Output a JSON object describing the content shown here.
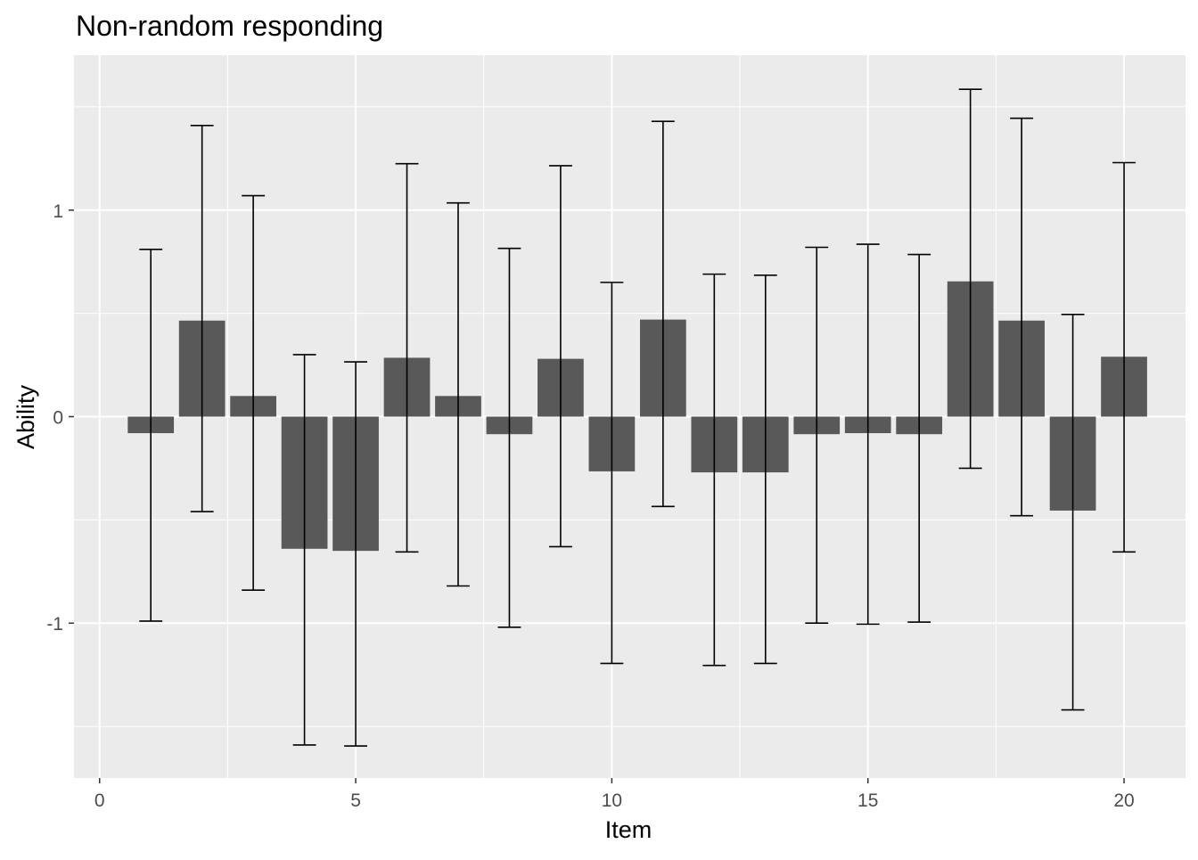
{
  "chart_data": {
    "type": "bar",
    "title": "Non-random responding",
    "xlabel": "Item",
    "ylabel": "Ability",
    "xlim": [
      -0.5,
      21.2
    ],
    "ylim": [
      -1.75,
      1.75
    ],
    "x_ticks": [
      0,
      5,
      10,
      15,
      20
    ],
    "x_tick_labels": [
      "0",
      "5",
      "10",
      "15",
      "20"
    ],
    "y_ticks": [
      -1,
      0,
      1
    ],
    "y_tick_labels": [
      "-1",
      "0",
      "1"
    ],
    "grid": true,
    "legend": "none",
    "series": [
      {
        "x": [
          1,
          2,
          3,
          4,
          5,
          6,
          7,
          8,
          9,
          10,
          11,
          12,
          13,
          14,
          15,
          16,
          17,
          18,
          19,
          20
        ],
        "values": [
          -0.08,
          0.465,
          0.1,
          -0.64,
          -0.65,
          0.285,
          0.1,
          -0.085,
          0.28,
          -0.265,
          0.47,
          -0.27,
          -0.27,
          -0.085,
          -0.08,
          -0.085,
          0.655,
          0.465,
          -0.455,
          0.29
        ],
        "error_low": [
          -0.99,
          -0.46,
          -0.84,
          -1.59,
          -1.595,
          -0.655,
          -0.82,
          -1.02,
          -0.63,
          -1.195,
          -0.435,
          -1.205,
          -1.195,
          -1.0,
          -1.005,
          -0.995,
          -0.25,
          -0.48,
          -1.42,
          -0.655
        ],
        "error_high": [
          0.81,
          1.41,
          1.07,
          0.3,
          0.265,
          1.225,
          1.035,
          0.815,
          1.215,
          0.65,
          1.43,
          0.69,
          0.685,
          0.82,
          0.835,
          0.785,
          1.585,
          1.445,
          0.495,
          1.23
        ]
      }
    ],
    "colors": {
      "panel": "#EBEBEB",
      "grid_major": "#FFFFFF",
      "bar": "#595959",
      "errorbar": "#000000",
      "text": "#000000",
      "tick_text": "#4D4D4D",
      "tick_mark": "#333333"
    }
  }
}
